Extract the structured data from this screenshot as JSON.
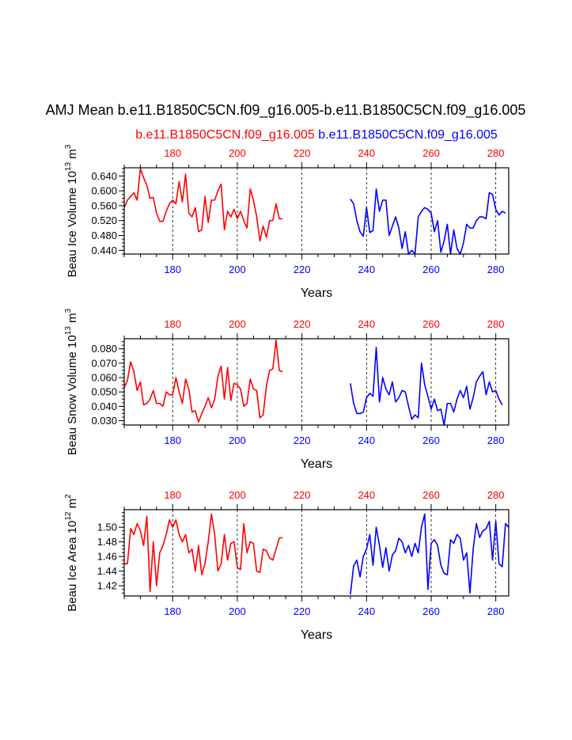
{
  "page": {
    "title": "AMJ Mean b.e11.B1850C5CN.f09_g16.005-b.e11.B1850C5CN.f09_g16.005",
    "case1_label": "b.e11.B1850C5CN.f09_g16.005",
    "case2_label": "b.e11.B1850C5CN.f09_g16.005"
  },
  "colors": {
    "case1": "#ff0000",
    "case2": "#0000ff",
    "axis": "#000000",
    "refline": "#000000"
  },
  "chart_data": [
    {
      "type": "line",
      "title": "",
      "xlabel": "Years",
      "ylabel_base": "Beau Ice Volume 10",
      "ylabel_exp": "13",
      "ylabel_unit": " m",
      "ylabel_unit_exp": "3",
      "xlim": [
        165,
        284
      ],
      "ylim": [
        0.43,
        0.662
      ],
      "yticks": [
        0.44,
        0.48,
        0.52,
        0.56,
        0.6,
        0.64
      ],
      "ytick_labels": [
        "0.440",
        "0.480",
        "0.520",
        "0.560",
        "0.600",
        "0.640"
      ],
      "top_ticks": [
        180,
        200,
        220,
        240,
        260,
        280
      ],
      "top_tick_labels": [
        "180",
        "200",
        "220",
        "240",
        "260",
        "280"
      ],
      "bottom_ticks": [
        180,
        200,
        220,
        240,
        260,
        280
      ],
      "bottom_tick_labels": [
        "180",
        "200",
        "220",
        "240",
        "260",
        "280"
      ],
      "ref_lines": [
        180,
        200,
        220,
        240,
        260,
        280
      ],
      "series": [
        {
          "name": "b.e11.B1850C5CN.f09_g16.005",
          "x_start": 165,
          "values": [
            0.555,
            0.575,
            0.585,
            0.595,
            0.575,
            0.66,
            0.635,
            0.615,
            0.58,
            0.582,
            0.54,
            0.518,
            0.518,
            0.545,
            0.565,
            0.575,
            0.565,
            0.625,
            0.57,
            0.645,
            0.54,
            0.53,
            0.555,
            0.49,
            0.495,
            0.585,
            0.515,
            0.575,
            0.575,
            0.6,
            0.618,
            0.495,
            0.545,
            0.53,
            0.55,
            0.525,
            0.545,
            0.52,
            0.5,
            0.605,
            0.575,
            0.53,
            0.465,
            0.505,
            0.475,
            0.52,
            0.52,
            0.565,
            0.525,
            0.525
          ]
        },
        {
          "name": "b.e11.B1850C5CN.f09_g16.005",
          "x_start": 235,
          "values": [
            0.578,
            0.565,
            0.52,
            0.49,
            0.478,
            0.555,
            0.488,
            0.493,
            0.605,
            0.545,
            0.575,
            0.575,
            0.48,
            0.505,
            0.53,
            0.5,
            0.445,
            0.49,
            0.43,
            0.44,
            0.43,
            0.53,
            0.545,
            0.555,
            0.55,
            0.54,
            0.49,
            0.52,
            0.435,
            0.465,
            0.51,
            0.43,
            0.495,
            0.445,
            0.43,
            0.46,
            0.51,
            0.5,
            0.5,
            0.52,
            0.53,
            0.53,
            0.525,
            0.595,
            0.59,
            0.55,
            0.535,
            0.545,
            0.54
          ]
        }
      ]
    },
    {
      "type": "line",
      "title": "",
      "xlabel": "Years",
      "ylabel_base": "Beau Snow Volume 10",
      "ylabel_exp": "13",
      "ylabel_unit": " m",
      "ylabel_unit_exp": "3",
      "xlim": [
        165,
        284
      ],
      "ylim": [
        0.027,
        0.087
      ],
      "yticks": [
        0.03,
        0.04,
        0.05,
        0.06,
        0.07,
        0.08
      ],
      "ytick_labels": [
        "0.030",
        "0.040",
        "0.050",
        "0.060",
        "0.070",
        "0.080"
      ],
      "top_ticks": [
        180,
        200,
        220,
        240,
        260,
        280
      ],
      "top_tick_labels": [
        "180",
        "200",
        "220",
        "240",
        "260",
        "280"
      ],
      "bottom_ticks": [
        180,
        200,
        220,
        240,
        260,
        280
      ],
      "bottom_tick_labels": [
        "180",
        "200",
        "220",
        "240",
        "260",
        "280"
      ],
      "ref_lines": [
        180,
        200,
        220,
        240,
        260,
        280
      ],
      "series": [
        {
          "name": "b.e11.B1850C5CN.f09_g16.005",
          "x_start": 165,
          "values": [
            0.053,
            0.058,
            0.071,
            0.064,
            0.051,
            0.057,
            0.041,
            0.042,
            0.045,
            0.051,
            0.042,
            0.042,
            0.04,
            0.05,
            0.048,
            0.048,
            0.06,
            0.05,
            0.042,
            0.059,
            0.052,
            0.036,
            0.037,
            0.029,
            0.035,
            0.04,
            0.046,
            0.039,
            0.045,
            0.061,
            0.068,
            0.045,
            0.067,
            0.044,
            0.056,
            0.055,
            0.052,
            0.04,
            0.042,
            0.059,
            0.052,
            0.051,
            0.032,
            0.034,
            0.054,
            0.065,
            0.066,
            0.086,
            0.065,
            0.064
          ]
        },
        {
          "name": "b.e11.B1850C5CN.f09_g16.005",
          "x_start": 235,
          "values": [
            0.056,
            0.042,
            0.035,
            0.035,
            0.036,
            0.046,
            0.049,
            0.047,
            0.081,
            0.043,
            0.06,
            0.052,
            0.048,
            0.057,
            0.043,
            0.046,
            0.051,
            0.05,
            0.04,
            0.031,
            0.034,
            0.032,
            0.07,
            0.055,
            0.047,
            0.038,
            0.045,
            0.037,
            0.038,
            0.027,
            0.042,
            0.042,
            0.036,
            0.045,
            0.051,
            0.046,
            0.054,
            0.038,
            0.046,
            0.057,
            0.061,
            0.064,
            0.048,
            0.057,
            0.05,
            0.051,
            0.045,
            0.041
          ]
        }
      ]
    },
    {
      "type": "line",
      "title": "",
      "xlabel": "Years",
      "ylabel_base": "Beau Ice Area 10",
      "ylabel_exp": "12",
      "ylabel_unit": " m",
      "ylabel_unit_exp": "2",
      "xlim": [
        165,
        284
      ],
      "ylim": [
        1.406,
        1.524
      ],
      "yticks": [
        1.42,
        1.44,
        1.46,
        1.48,
        1.5
      ],
      "ytick_labels": [
        "1.42",
        "1.44",
        "1.46",
        "1.48",
        "1.50"
      ],
      "top_ticks": [
        180,
        200,
        220,
        240,
        260,
        280
      ],
      "top_tick_labels": [
        "180",
        "200",
        "220",
        "240",
        "260",
        "280"
      ],
      "bottom_ticks": [
        180,
        200,
        220,
        240,
        260,
        280
      ],
      "bottom_tick_labels": [
        "180",
        "200",
        "220",
        "240",
        "260",
        "280"
      ],
      "ref_lines": [
        180,
        200,
        220,
        240,
        260,
        280
      ],
      "series": [
        {
          "name": "b.e11.B1850C5CN.f09_g16.005",
          "x_start": 165,
          "values": [
            1.45,
            1.45,
            1.498,
            1.49,
            1.505,
            1.495,
            1.475,
            1.515,
            1.412,
            1.48,
            1.42,
            1.465,
            1.475,
            1.49,
            1.51,
            1.5,
            1.51,
            1.49,
            1.48,
            1.49,
            1.465,
            1.47,
            1.44,
            1.475,
            1.435,
            1.45,
            1.48,
            1.518,
            1.49,
            1.44,
            1.45,
            1.49,
            1.455,
            1.478,
            1.48,
            1.445,
            1.442,
            1.505,
            1.465,
            1.48,
            1.478,
            1.44,
            1.438,
            1.47,
            1.468,
            1.458,
            1.455,
            1.47,
            1.485,
            1.486
          ]
        },
        {
          "name": "b.e11.B1850C5CN.f09_g16.005",
          "x_start": 235,
          "values": [
            1.408,
            1.447,
            1.455,
            1.432,
            1.46,
            1.47,
            1.49,
            1.448,
            1.5,
            1.475,
            1.445,
            1.472,
            1.44,
            1.462,
            1.468,
            1.485,
            1.48,
            1.465,
            1.475,
            1.46,
            1.478,
            1.465,
            1.5,
            1.518,
            1.415,
            1.478,
            1.483,
            1.475,
            1.448,
            1.437,
            1.435,
            1.483,
            1.478,
            1.49,
            1.485,
            1.455,
            1.465,
            1.41,
            1.47,
            1.505,
            1.486,
            1.495,
            1.498,
            1.508,
            1.455,
            1.508,
            1.45,
            1.446,
            1.505,
            1.5
          ]
        }
      ]
    }
  ]
}
